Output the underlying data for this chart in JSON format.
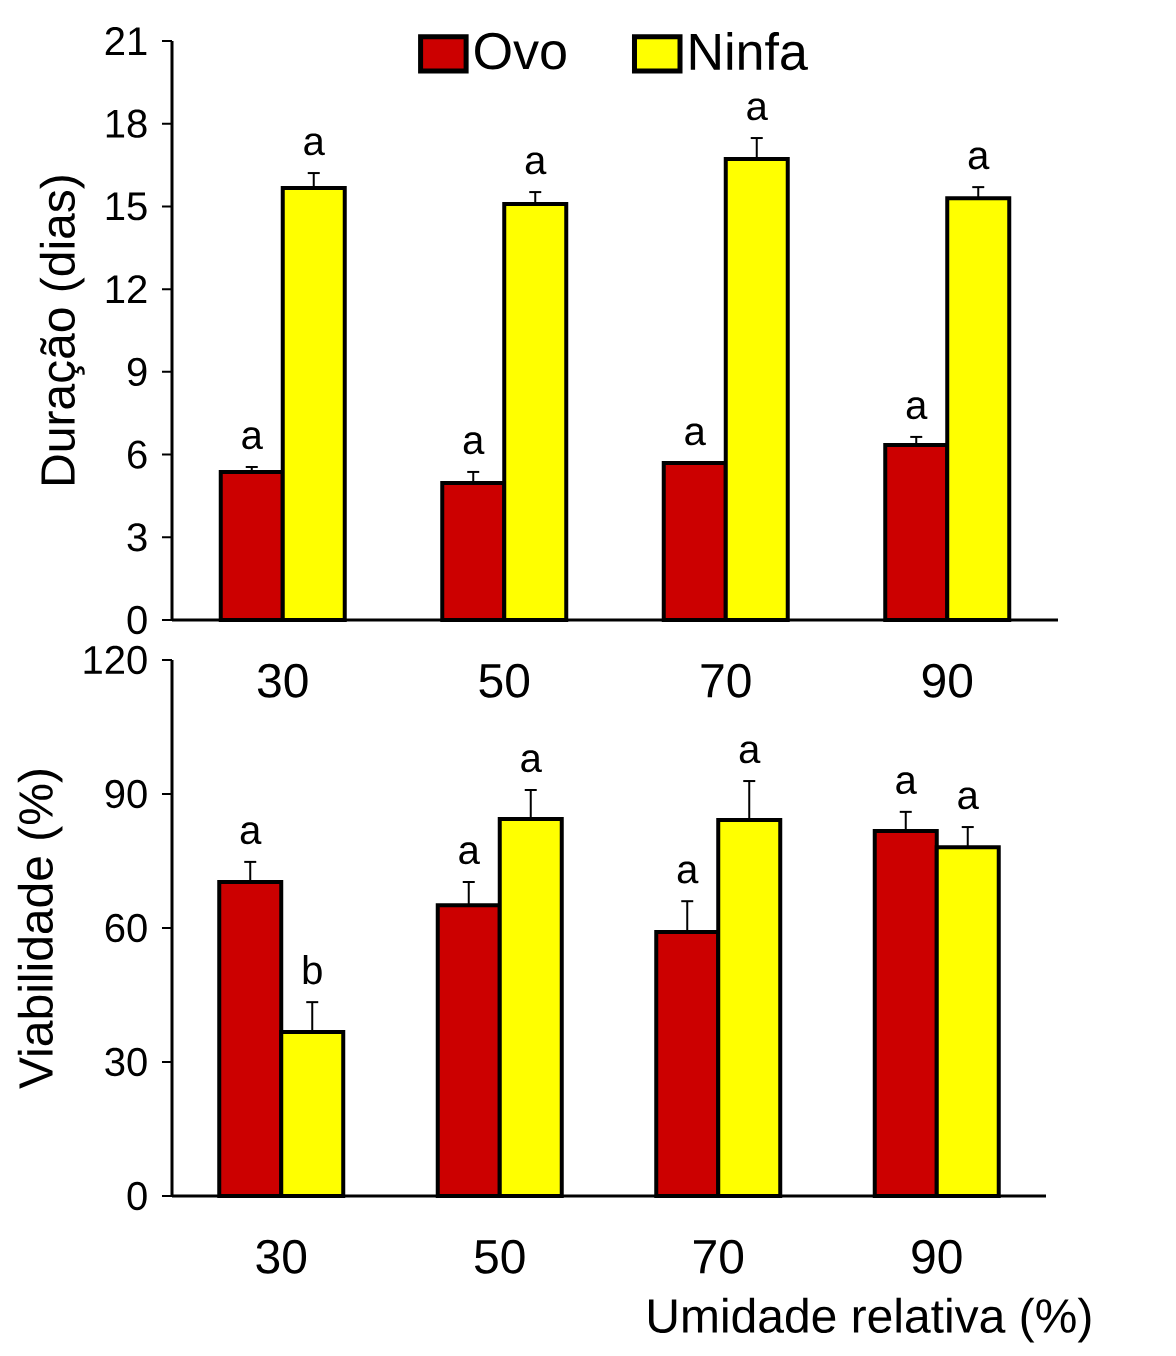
{
  "chart_data": [
    {
      "type": "bar",
      "ylabel": "Duração (dias)",
      "categories": [
        "30",
        "50",
        "70",
        "90"
      ],
      "ylim": [
        0,
        21
      ],
      "yticks": [
        0,
        3,
        6,
        9,
        12,
        15,
        18,
        21
      ],
      "legend": "top",
      "series": [
        {
          "name": "Ovo",
          "color": "#cc0000",
          "values": [
            5.37,
            4.97,
            5.69,
            6.35
          ],
          "errors": [
            [
              5.37,
              5.55
            ],
            [
              4.97,
              5.37
            ],
            [
              5.69,
              5.69
            ],
            [
              6.35,
              6.64
            ]
          ],
          "value_labels": [
            "a",
            "a",
            "a",
            "a"
          ]
        },
        {
          "name": "Ninfa",
          "color": "#ffff00",
          "values": [
            15.67,
            15.09,
            16.72,
            15.3
          ],
          "errors": [
            [
              15.67,
              16.21
            ],
            [
              15.09,
              15.52
            ],
            [
              16.72,
              17.48
            ],
            [
              15.3,
              15.7
            ]
          ],
          "value_labels": [
            "a",
            "a",
            "a",
            "a"
          ]
        }
      ]
    },
    {
      "type": "bar",
      "ylabel": "Viabilidade (%)",
      "xlabel": "Umidade relativa (%)",
      "categories": [
        "30",
        "50",
        "70",
        "90"
      ],
      "ylim": [
        0,
        120
      ],
      "yticks": [
        0,
        30,
        60,
        90,
        120
      ],
      "series": [
        {
          "color": "#cc0000",
          "values": [
            70.3,
            65.1,
            59.1,
            81.7
          ],
          "errors": [
            [
              70.3,
              74.8
            ],
            [
              65.1,
              70.3
            ],
            [
              59.1,
              66.0
            ],
            [
              81.7,
              86.0
            ]
          ],
          "value_labels": [
            "a",
            "a",
            "a",
            "a"
          ]
        },
        {
          "color": "#ffff00",
          "values": [
            36.7,
            84.4,
            84.2,
            78.1
          ],
          "errors": [
            [
              36.7,
              43.4
            ],
            [
              84.4,
              90.9
            ],
            [
              84.2,
              92.9
            ],
            [
              78.1,
              82.6
            ]
          ],
          "value_labels": [
            "b",
            "a",
            "a",
            "a"
          ]
        }
      ]
    }
  ]
}
